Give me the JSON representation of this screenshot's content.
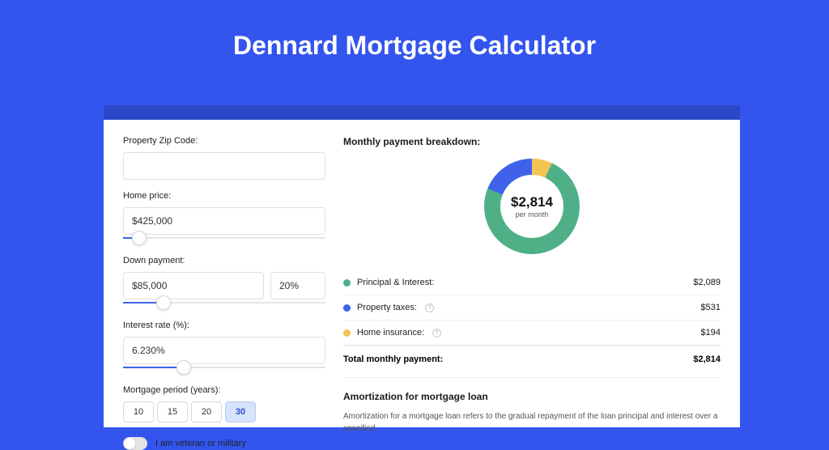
{
  "page_title": "Dennard Mortgage Calculator",
  "colors": {
    "page_bg": "#3355ee",
    "shadow_bar": "#2a48c8",
    "panel_bg": "#ffffff",
    "slider_fill": "#3e63ea"
  },
  "form": {
    "zip": {
      "label": "Property Zip Code:",
      "value": ""
    },
    "home_price": {
      "label": "Home price:",
      "value": "$425,000",
      "slider_pct": 8
    },
    "down_payment": {
      "label": "Down payment:",
      "value": "$85,000",
      "pct_value": "20%",
      "slider_pct": 20
    },
    "interest": {
      "label": "Interest rate (%):",
      "value": "6.230%",
      "slider_pct": 30
    },
    "period": {
      "label": "Mortgage period (years):",
      "options": [
        "10",
        "15",
        "20",
        "30"
      ],
      "active": "30"
    },
    "veteran": {
      "label": "I am veteran or military",
      "on": false
    }
  },
  "breakdown": {
    "title": "Monthly payment breakdown:",
    "center_value": "$2,814",
    "center_sub": "per month",
    "donut": {
      "slices": [
        {
          "name": "Principal & Interest",
          "color": "#4fb088",
          "pct": 74.2
        },
        {
          "name": "Property taxes",
          "color": "#3e63ea",
          "pct": 18.9
        },
        {
          "name": "Home insurance",
          "color": "#f3c452",
          "pct": 6.9
        }
      ]
    },
    "rows": [
      {
        "label": "Principal & Interest:",
        "color": "#4fb088",
        "amount": "$2,089",
        "info": false
      },
      {
        "label": "Property taxes:",
        "color": "#3e63ea",
        "amount": "$531",
        "info": true
      },
      {
        "label": "Home insurance:",
        "color": "#f3c452",
        "amount": "$194",
        "info": true
      }
    ],
    "total_label": "Total monthly payment:",
    "total_amount": "$2,814"
  },
  "amortization": {
    "title": "Amortization for mortgage loan",
    "text": "Amortization for a mortgage loan refers to the gradual repayment of the loan principal and interest over a specified"
  }
}
